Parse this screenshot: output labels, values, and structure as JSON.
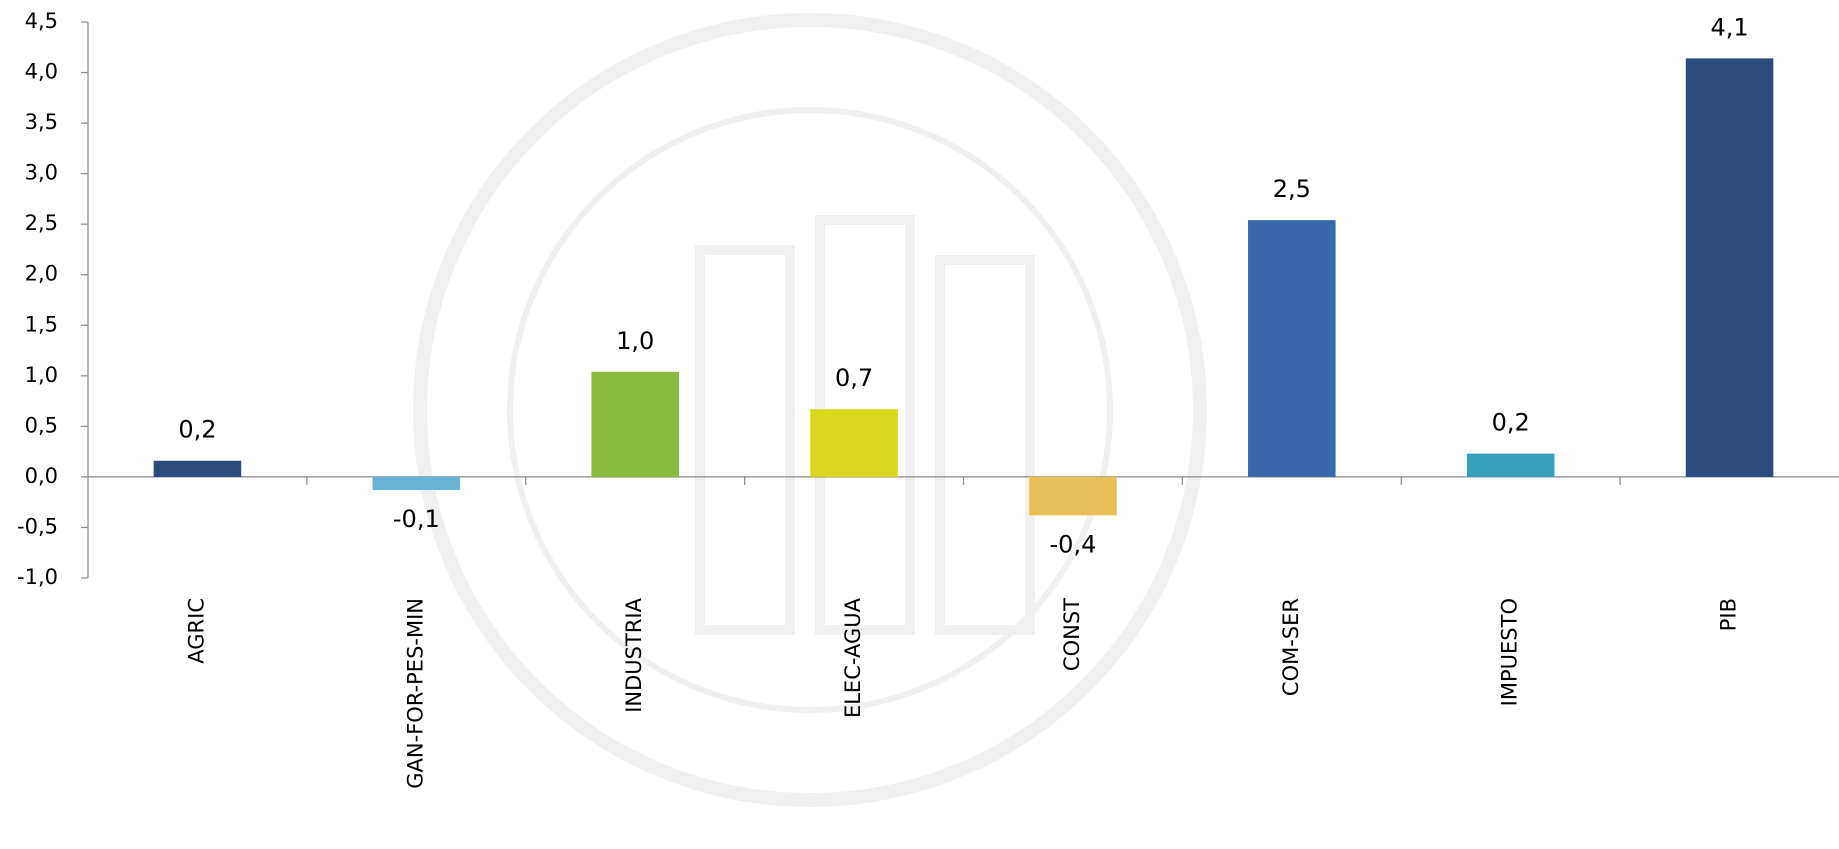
{
  "chart_data": {
    "type": "bar",
    "categories": [
      "AGRIC",
      "GAN-FOR-PES-MIN",
      "INDUSTRIA",
      "ELEC-AGUA",
      "CONST",
      "COM-SER",
      "IMPUESTO",
      "PIB"
    ],
    "values": [
      0.16,
      -0.13,
      1.04,
      0.67,
      -0.38,
      2.54,
      0.23,
      4.14
    ],
    "value_labels": [
      "0,2",
      "-0,1",
      "1,0",
      "0,7",
      "-0,4",
      "2,5",
      "0,2",
      "4,1"
    ],
    "colors": [
      "#2e4a7d",
      "#6bb3d6",
      "#8cba3c",
      "#d8d81e",
      "#e8c05a",
      "#3a67ab",
      "#35a0bc",
      "#2d4a7c"
    ],
    "ylim": [
      -1,
      4.5
    ],
    "yticks": [
      {
        "value": -1,
        "label": "-1,0"
      },
      {
        "value": -0.5,
        "label": "-0,5"
      },
      {
        "value": 0,
        "label": "0,0"
      },
      {
        "value": 0.5,
        "label": "0,5"
      },
      {
        "value": 1,
        "label": "1,0"
      },
      {
        "value": 1.5,
        "label": "1,5"
      },
      {
        "value": 2,
        "label": "2,0"
      },
      {
        "value": 2.5,
        "label": "2,5"
      },
      {
        "value": 3,
        "label": "3,0"
      },
      {
        "value": 3.5,
        "label": "3,5"
      },
      {
        "value": 4,
        "label": "4,0"
      },
      {
        "value": 4.5,
        "label": "4,5"
      }
    ],
    "grid": false
  }
}
